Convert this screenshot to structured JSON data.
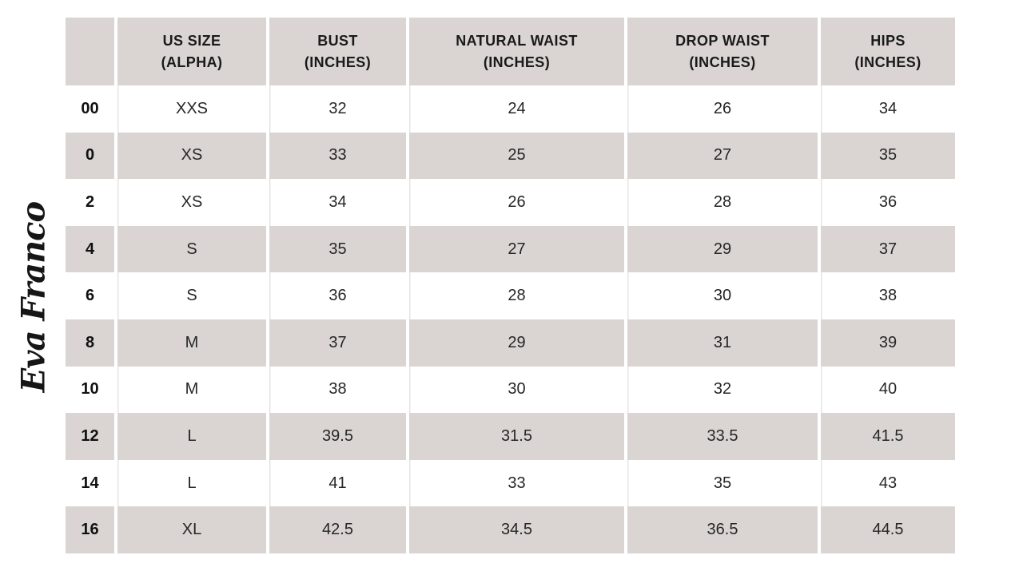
{
  "brand": {
    "logo_text": "Eva Franco"
  },
  "colors": {
    "shaded_cell_bg": "#dad5d3",
    "header_text": "#1a1a1a",
    "data_text": "#262626",
    "hairline": "#e7e4e3"
  },
  "table": {
    "columns": [
      {
        "id": "us_size",
        "label": ""
      },
      {
        "id": "alpha",
        "label": "US SIZE\n(ALPHA)"
      },
      {
        "id": "bust",
        "label": "BUST\n(INCHES)"
      },
      {
        "id": "natural_waist",
        "label": "NATURAL WAIST\n(INCHES)"
      },
      {
        "id": "drop_waist",
        "label": "DROP WAIST\n(INCHES)"
      },
      {
        "id": "hips",
        "label": "HIPS\n(INCHES)"
      }
    ],
    "rows": [
      {
        "us_size": "00",
        "alpha": "XXS",
        "bust": "32",
        "natural_waist": "24",
        "drop_waist": "26",
        "hips": "34"
      },
      {
        "us_size": "0",
        "alpha": "XS",
        "bust": "33",
        "natural_waist": "25",
        "drop_waist": "27",
        "hips": "35"
      },
      {
        "us_size": "2",
        "alpha": "XS",
        "bust": "34",
        "natural_waist": "26",
        "drop_waist": "28",
        "hips": "36"
      },
      {
        "us_size": "4",
        "alpha": "S",
        "bust": "35",
        "natural_waist": "27",
        "drop_waist": "29",
        "hips": "37"
      },
      {
        "us_size": "6",
        "alpha": "S",
        "bust": "36",
        "natural_waist": "28",
        "drop_waist": "30",
        "hips": "38"
      },
      {
        "us_size": "8",
        "alpha": "M",
        "bust": "37",
        "natural_waist": "29",
        "drop_waist": "31",
        "hips": "39"
      },
      {
        "us_size": "10",
        "alpha": "M",
        "bust": "38",
        "natural_waist": "30",
        "drop_waist": "32",
        "hips": "40"
      },
      {
        "us_size": "12",
        "alpha": "L",
        "bust": "39.5",
        "natural_waist": "31.5",
        "drop_waist": "33.5",
        "hips": "41.5"
      },
      {
        "us_size": "14",
        "alpha": "L",
        "bust": "41",
        "natural_waist": "33",
        "drop_waist": "35",
        "hips": "43"
      },
      {
        "us_size": "16",
        "alpha": "XL",
        "bust": "42.5",
        "natural_waist": "34.5",
        "drop_waist": "36.5",
        "hips": "44.5"
      }
    ]
  }
}
